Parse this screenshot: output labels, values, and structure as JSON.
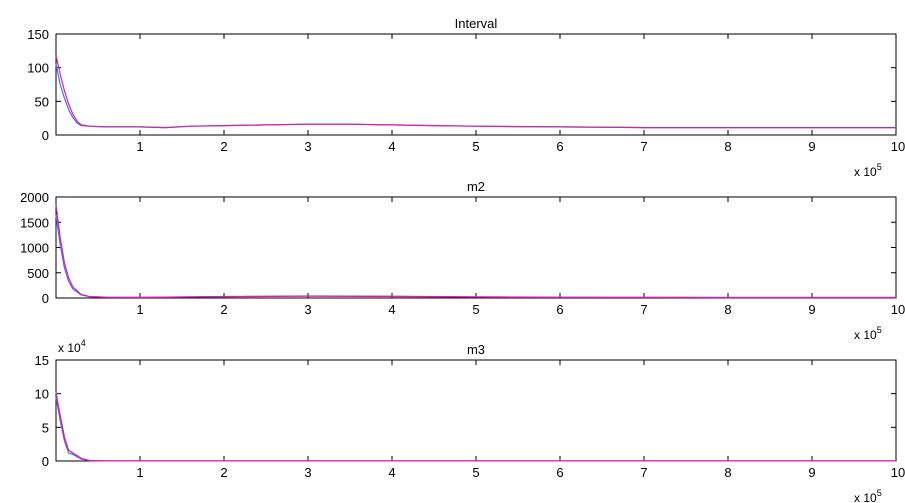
{
  "chart_data": [
    {
      "type": "line",
      "title": "Interval",
      "xlabel": "",
      "ylabel": "",
      "x_multiplier": {
        "base": "x 10",
        "exponent": "5"
      },
      "y_multiplier": null,
      "xlim": [
        0,
        10
      ],
      "ylim": [
        0,
        150
      ],
      "x_ticks": [
        1,
        2,
        3,
        4,
        5,
        6,
        7,
        8,
        9,
        10
      ],
      "y_ticks": [
        0,
        50,
        100,
        150
      ],
      "grid": false,
      "legend": null,
      "series": [
        {
          "color": "#3f6fff",
          "x": [
            0.0,
            0.05,
            0.1,
            0.15,
            0.2,
            0.25,
            0.3,
            0.4,
            0.6,
            0.8,
            1.0,
            1.3,
            1.6,
            2.0,
            2.5,
            3.0,
            3.5,
            4.0,
            4.5,
            5.0,
            6.0,
            7.0,
            8.0,
            9.0,
            10.0
          ],
          "y": [
            105,
            75,
            55,
            38,
            26,
            18,
            14,
            13,
            12,
            12,
            12,
            11,
            13,
            14,
            15,
            16,
            16,
            15,
            14,
            13,
            12,
            11,
            11,
            11,
            11
          ]
        },
        {
          "color": "#e0209a",
          "x": [
            0.0,
            0.05,
            0.1,
            0.15,
            0.2,
            0.25,
            0.3,
            0.4,
            0.6,
            0.8,
            1.0,
            1.3,
            1.6,
            2.0,
            2.5,
            3.0,
            3.5,
            4.0,
            4.5,
            5.0,
            6.0,
            7.0,
            8.0,
            9.0,
            10.0
          ],
          "y": [
            118,
            90,
            66,
            46,
            31,
            21,
            15,
            13,
            12,
            12,
            12,
            11,
            13,
            14,
            15,
            16,
            16,
            15,
            14,
            13,
            12,
            11,
            11,
            11,
            11
          ]
        }
      ]
    },
    {
      "type": "line",
      "title": "m2",
      "xlabel": "",
      "ylabel": "",
      "x_multiplier": {
        "base": "x 10",
        "exponent": "5"
      },
      "y_multiplier": null,
      "xlim": [
        0,
        10
      ],
      "ylim": [
        0,
        2000
      ],
      "x_ticks": [
        1,
        2,
        3,
        4,
        5,
        6,
        7,
        8,
        9,
        10
      ],
      "y_ticks": [
        0,
        500,
        1000,
        1500,
        2000
      ],
      "grid": false,
      "legend": null,
      "series": [
        {
          "color": "#3f6fff",
          "x": [
            0.0,
            0.05,
            0.1,
            0.15,
            0.2,
            0.3,
            0.4,
            0.6,
            1.0,
            2.0,
            3.0,
            4.0,
            5.0,
            6.0,
            7.0,
            8.0,
            9.0,
            10.0
          ],
          "y": [
            1650,
            1050,
            600,
            330,
            180,
            60,
            25,
            15,
            12,
            30,
            40,
            35,
            22,
            15,
            12,
            10,
            10,
            10
          ]
        },
        {
          "color": "#e0209a",
          "x": [
            0.0,
            0.05,
            0.1,
            0.15,
            0.2,
            0.3,
            0.4,
            0.6,
            1.0,
            2.0,
            3.0,
            4.0,
            5.0,
            6.0,
            7.0,
            8.0,
            9.0,
            10.0
          ],
          "y": [
            1850,
            1200,
            700,
            400,
            220,
            70,
            28,
            15,
            12,
            25,
            35,
            30,
            20,
            14,
            11,
            10,
            10,
            10
          ]
        }
      ]
    },
    {
      "type": "line",
      "title": "m3",
      "xlabel": "",
      "ylabel": "",
      "x_multiplier": {
        "base": "x 10",
        "exponent": "5"
      },
      "y_multiplier": {
        "base": "x 10",
        "exponent": "4"
      },
      "xlim": [
        0,
        10
      ],
      "ylim": [
        0,
        15
      ],
      "x_ticks": [
        1,
        2,
        3,
        4,
        5,
        6,
        7,
        8,
        9,
        10
      ],
      "y_ticks": [
        0,
        5,
        10,
        15
      ],
      "grid": false,
      "legend": null,
      "series": [
        {
          "color": "#3f6fff",
          "x": [
            0.0,
            0.05,
            0.1,
            0.15,
            0.2,
            0.3,
            0.4,
            0.6,
            1.0,
            2.0,
            4.0,
            6.0,
            8.0,
            10.0
          ],
          "y": [
            9.5,
            6.0,
            3.0,
            1.2,
            1.0,
            0.3,
            0.05,
            0.02,
            0.01,
            0.01,
            0.01,
            0.01,
            0.01,
            0.01
          ]
        },
        {
          "color": "#e0209a",
          "x": [
            0.0,
            0.05,
            0.1,
            0.15,
            0.2,
            0.3,
            0.4,
            0.6,
            1.0,
            2.0,
            4.0,
            6.0,
            8.0,
            10.0
          ],
          "y": [
            10.2,
            6.8,
            3.6,
            1.6,
            1.2,
            0.4,
            0.07,
            0.02,
            0.01,
            0.01,
            0.01,
            0.01,
            0.01,
            0.01
          ]
        }
      ]
    }
  ]
}
